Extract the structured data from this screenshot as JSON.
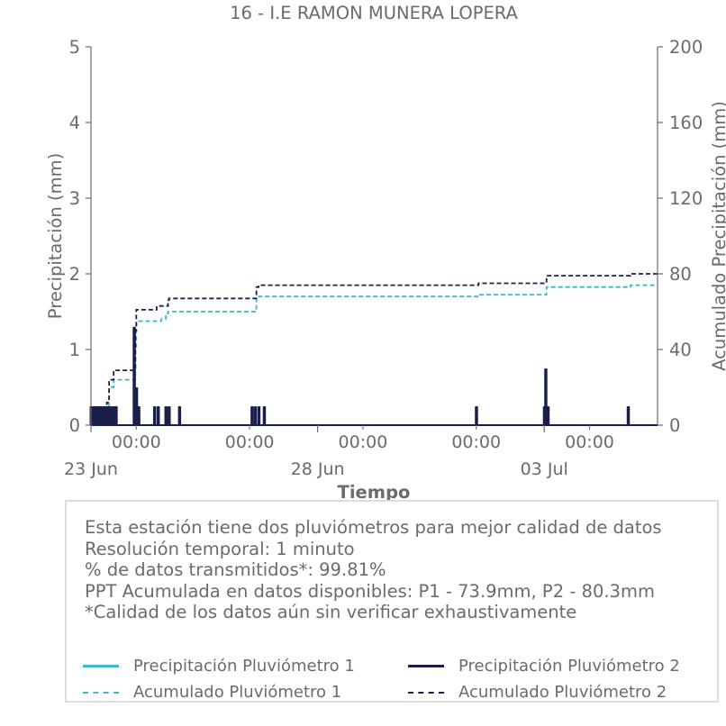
{
  "title": "16 - I.E RAMON MUNERA LOPERA",
  "colors": {
    "p1": "#3fb8c8",
    "p2": "#1a1f4a",
    "axis": "#6b6b6b",
    "text": "#6b6b6b"
  },
  "chart_data": {
    "type": "bar",
    "title": "16 - I.E RAMON MUNERA LOPERA",
    "xlabel": "Tiempo",
    "ylabel": "Precipitación (mm)",
    "y2label": "Acumulado Precipitación (mm)",
    "ylim": [
      0,
      5
    ],
    "y2lim": [
      0,
      200
    ],
    "yticks": [
      "0",
      "1",
      "2",
      "3",
      "4",
      "5"
    ],
    "y2ticks": [
      "0",
      "40",
      "80",
      "120",
      "160",
      "200"
    ],
    "xlim_days": [
      0,
      12.5
    ],
    "x_time_ticks": [
      {
        "day": 1,
        "label": "00:00"
      },
      {
        "day": 3.5,
        "label": "00:00"
      },
      {
        "day": 6,
        "label": "00:00"
      },
      {
        "day": 8.5,
        "label": "00:00"
      },
      {
        "day": 11,
        "label": "00:00"
      }
    ],
    "x_date_ticks": [
      {
        "day": 0,
        "label": "23 Jun"
      },
      {
        "day": 5,
        "label": "28 Jun"
      },
      {
        "day": 10,
        "label": "03 Jul"
      }
    ],
    "grid": false,
    "series": [
      {
        "name": "Precipitación Pluviómetro 2",
        "kind": "bar",
        "axis": "left",
        "bars": [
          [
            0.0,
            0.25
          ],
          [
            0.05,
            0.25
          ],
          [
            0.1,
            0.25
          ],
          [
            0.15,
            0.25
          ],
          [
            0.2,
            0.25
          ],
          [
            0.25,
            0.25
          ],
          [
            0.3,
            0.25
          ],
          [
            0.35,
            0.25
          ],
          [
            0.4,
            0.25
          ],
          [
            0.45,
            0.25
          ],
          [
            0.5,
            0.25
          ],
          [
            0.55,
            0.25
          ],
          [
            0.95,
            1.3
          ],
          [
            1.0,
            0.5
          ],
          [
            1.05,
            0.25
          ],
          [
            1.4,
            0.25
          ],
          [
            1.48,
            0.25
          ],
          [
            1.65,
            0.25
          ],
          [
            1.72,
            0.25
          ],
          [
            1.95,
            0.25
          ],
          [
            3.55,
            0.25
          ],
          [
            3.62,
            0.25
          ],
          [
            3.7,
            0.25
          ],
          [
            3.82,
            0.25
          ],
          [
            8.5,
            0.25
          ],
          [
            10.0,
            0.25
          ],
          [
            10.03,
            0.75
          ],
          [
            10.08,
            0.25
          ],
          [
            11.85,
            0.25
          ]
        ]
      },
      {
        "name": "Acumulado Pluviómetro 1",
        "kind": "step",
        "axis": "right",
        "points": [
          [
            0,
            0
          ],
          [
            0.2,
            4
          ],
          [
            0.35,
            8
          ],
          [
            0.4,
            20
          ],
          [
            0.5,
            24
          ],
          [
            0.95,
            24
          ],
          [
            0.98,
            40
          ],
          [
            1.0,
            55
          ],
          [
            1.5,
            55
          ],
          [
            1.55,
            56
          ],
          [
            1.6,
            56
          ],
          [
            1.65,
            59
          ],
          [
            1.7,
            60
          ],
          [
            3.6,
            60
          ],
          [
            3.65,
            67
          ],
          [
            3.7,
            68
          ],
          [
            8.5,
            68
          ],
          [
            8.55,
            69
          ],
          [
            10.0,
            69
          ],
          [
            10.05,
            73
          ],
          [
            11.85,
            73
          ],
          [
            11.9,
            74
          ],
          [
            12.5,
            74
          ]
        ]
      },
      {
        "name": "Acumulado Pluviómetro 2",
        "kind": "step",
        "axis": "right",
        "points": [
          [
            0,
            0
          ],
          [
            0.2,
            5
          ],
          [
            0.35,
            12
          ],
          [
            0.4,
            24
          ],
          [
            0.5,
            29
          ],
          [
            0.95,
            29
          ],
          [
            0.98,
            50
          ],
          [
            1.0,
            61
          ],
          [
            1.4,
            61
          ],
          [
            1.45,
            63
          ],
          [
            1.65,
            63
          ],
          [
            1.7,
            66
          ],
          [
            1.72,
            67
          ],
          [
            3.6,
            67
          ],
          [
            3.65,
            73
          ],
          [
            3.7,
            74
          ],
          [
            8.5,
            74
          ],
          [
            8.55,
            75
          ],
          [
            10.0,
            75
          ],
          [
            10.05,
            79
          ],
          [
            11.85,
            79
          ],
          [
            11.9,
            80
          ],
          [
            12.5,
            80
          ]
        ]
      }
    ],
    "legend_position": "bottom"
  },
  "notes": [
    "Esta estación tiene dos pluviómetros para mejor calidad de datos",
    "Resolución temporal: 1 minuto",
    "% de datos transmitidos*: 99.81%",
    "PPT Acumulada en datos disponibles: P1 - 73.9mm, P2 - 80.3mm",
    "*Calidad de los datos aún sin verificar exhaustivamente"
  ],
  "legend": {
    "p1_precip": "Precipitación Pluviómetro 1",
    "p2_precip": "Precipitación Pluviómetro 2",
    "p1_acum": "Acumulado Pluviómetro 1",
    "p2_acum": "Acumulado Pluviómetro 2"
  }
}
